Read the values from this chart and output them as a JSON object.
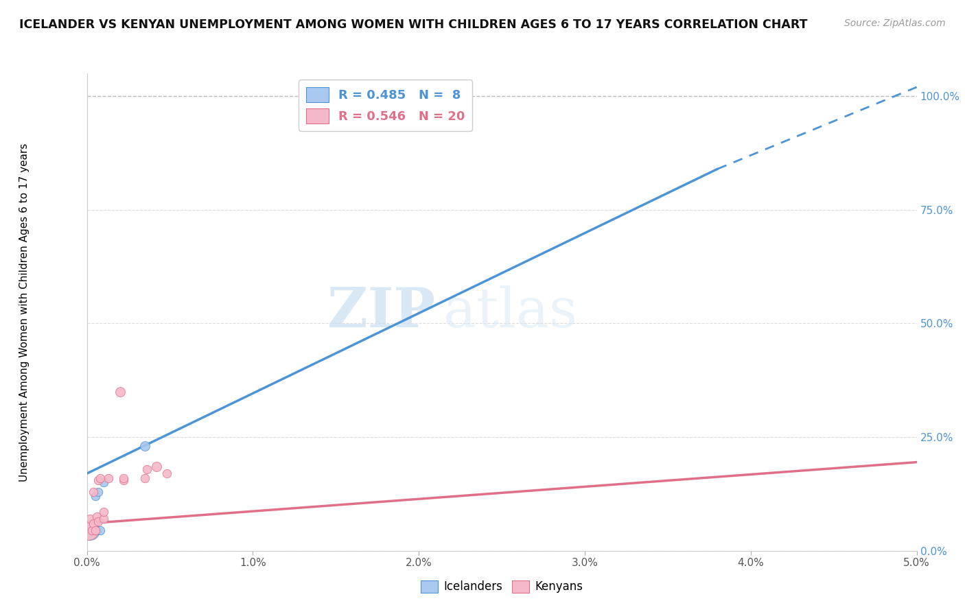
{
  "title": "ICELANDER VS KENYAN UNEMPLOYMENT AMONG WOMEN WITH CHILDREN AGES 6 TO 17 YEARS CORRELATION CHART",
  "source": "Source: ZipAtlas.com",
  "ylabel": "Unemployment Among Women with Children Ages 6 to 17 years",
  "xlim": [
    0.0,
    0.05
  ],
  "ylim": [
    0.0,
    1.05
  ],
  "xticks": [
    0.0,
    0.01,
    0.02,
    0.03,
    0.04,
    0.05
  ],
  "xtick_labels": [
    "0.0%",
    "1.0%",
    "2.0%",
    "3.0%",
    "4.0%",
    "5.0%"
  ],
  "ytick_positions": [
    0.0,
    0.25,
    0.5,
    0.75,
    1.0
  ],
  "ytick_labels": [
    "0.0%",
    "25.0%",
    "50.0%",
    "75.0%",
    "100.0%"
  ],
  "icelanders_color": "#a8c8f0",
  "kenyans_color": "#f5b8c8",
  "icelanders_line_color": "#4d94d5",
  "kenyans_line_color": "#e0708a",
  "watermark_zip": "ZIP",
  "watermark_atlas": "atlas",
  "background_color": "#ffffff",
  "iceland_scatter_x": [
    0.0002,
    0.0003,
    0.0005,
    0.0006,
    0.0007,
    0.0008,
    0.001,
    0.0035
  ],
  "iceland_scatter_y": [
    0.045,
    0.045,
    0.12,
    0.045,
    0.13,
    0.045,
    0.15,
    0.23
  ],
  "iceland_scatter_size": [
    400,
    80,
    80,
    80,
    80,
    80,
    80,
    100
  ],
  "kenya_scatter_x": [
    0.0001,
    0.0002,
    0.0003,
    0.0004,
    0.0004,
    0.0005,
    0.0006,
    0.0007,
    0.0007,
    0.0008,
    0.001,
    0.001,
    0.0013,
    0.002,
    0.0022,
    0.0022,
    0.0035,
    0.0036,
    0.0042,
    0.0048
  ],
  "kenya_scatter_y": [
    0.045,
    0.07,
    0.045,
    0.06,
    0.13,
    0.045,
    0.075,
    0.065,
    0.155,
    0.16,
    0.07,
    0.085,
    0.16,
    0.35,
    0.155,
    0.16,
    0.16,
    0.18,
    0.185,
    0.17
  ],
  "kenya_scatter_size": [
    400,
    80,
    80,
    80,
    80,
    80,
    80,
    80,
    80,
    80,
    80,
    80,
    80,
    100,
    80,
    80,
    80,
    80,
    100,
    80
  ],
  "iceland_line_x": [
    0.0,
    0.038,
    0.05
  ],
  "iceland_line_y": [
    0.17,
    0.84,
    1.02
  ],
  "iceland_line_solid_end": 0.038,
  "kenya_line_x": [
    0.0,
    0.05
  ],
  "kenya_line_y": [
    0.06,
    0.195
  ],
  "legend_r_iceland": "R = 0.485",
  "legend_n_iceland": "N =  8",
  "legend_r_kenya": "R = 0.546",
  "legend_n_kenya": "N = 20"
}
